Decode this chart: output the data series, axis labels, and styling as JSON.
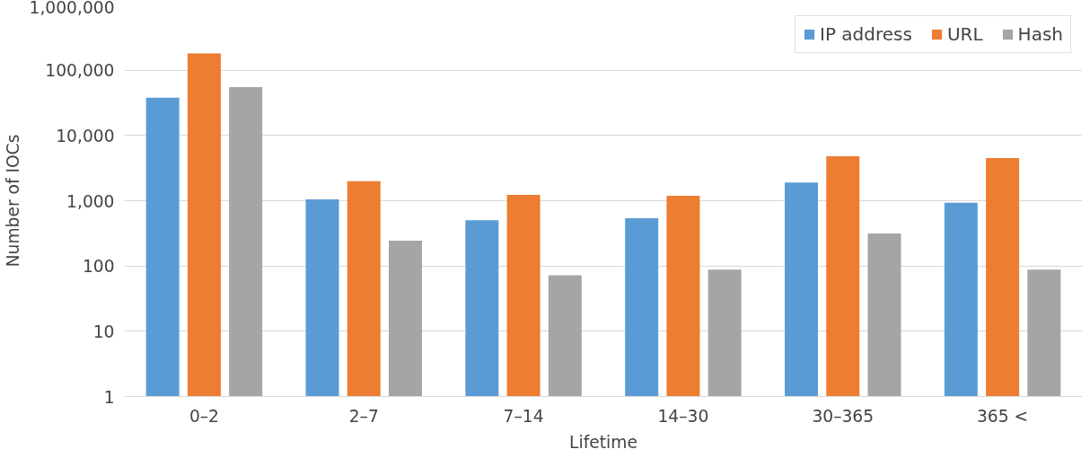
{
  "chart_data": {
    "type": "bar",
    "xlabel": "Lifetime",
    "ylabel": "Number of IOCs",
    "categories": [
      "0–2",
      "2–7",
      "7–14",
      "14–30",
      "30–365",
      "365 <"
    ],
    "series": [
      {
        "name": "IP address",
        "color": "#5b9bd5",
        "values": [
          38000,
          1050,
          500,
          540,
          1900,
          930
        ]
      },
      {
        "name": "URL",
        "color": "#ed7d31",
        "values": [
          180000,
          2000,
          1230,
          1190,
          4800,
          4500
        ]
      },
      {
        "name": "Hash",
        "color": "#a5a5a5",
        "values": [
          55000,
          245,
          72,
          88,
          315,
          88
        ]
      }
    ],
    "log": "y",
    "ylim": [
      1,
      1000000
    ],
    "yticks": [
      {
        "value": 1,
        "label": "1"
      },
      {
        "value": 10,
        "label": "10"
      },
      {
        "value": 100,
        "label": "100"
      },
      {
        "value": 1000,
        "label": "1,000"
      },
      {
        "value": 10000,
        "label": "10,000"
      },
      {
        "value": 100000,
        "label": "100,000"
      },
      {
        "value": 1000000,
        "label": "1,000,000"
      }
    ],
    "grid": "y",
    "legend": "top right"
  }
}
